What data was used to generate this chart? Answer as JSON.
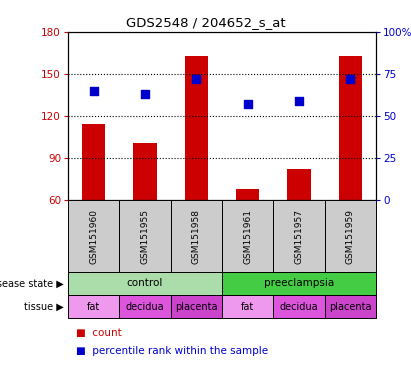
{
  "title": "GDS2548 / 204652_s_at",
  "samples": [
    "GSM151960",
    "GSM151955",
    "GSM151958",
    "GSM151961",
    "GSM151957",
    "GSM151959"
  ],
  "bar_values": [
    114,
    101,
    163,
    68,
    82,
    163
  ],
  "percentile_values": [
    65,
    63,
    72,
    57,
    59,
    72
  ],
  "bar_bottom": 60,
  "ylim_left": [
    60,
    180
  ],
  "ylim_right": [
    0,
    100
  ],
  "yticks_left": [
    60,
    90,
    120,
    150,
    180
  ],
  "yticks_right": [
    0,
    25,
    50,
    75,
    100
  ],
  "ytick_labels_right": [
    "0",
    "25",
    "50",
    "75",
    "100%"
  ],
  "bar_color": "#cc0000",
  "dot_color": "#0000cc",
  "disease_state": [
    {
      "label": "control",
      "span": [
        0,
        3
      ],
      "color": "#aaddaa"
    },
    {
      "label": "preeclampsia",
      "span": [
        3,
        6
      ],
      "color": "#44cc44"
    }
  ],
  "tissue": [
    {
      "label": "fat",
      "span": [
        0,
        1
      ],
      "color": "#ee99ee"
    },
    {
      "label": "decidua",
      "span": [
        1,
        2
      ],
      "color": "#dd55dd"
    },
    {
      "label": "placenta",
      "span": [
        2,
        3
      ],
      "color": "#cc44cc"
    },
    {
      "label": "fat",
      "span": [
        3,
        4
      ],
      "color": "#ee99ee"
    },
    {
      "label": "decidua",
      "span": [
        4,
        5
      ],
      "color": "#dd55dd"
    },
    {
      "label": "placenta",
      "span": [
        5,
        6
      ],
      "color": "#cc44cc"
    }
  ],
  "sample_bg_color": "#cccccc",
  "legend_count_color": "#cc0000",
  "legend_pct_color": "#0000cc",
  "fig_width": 4.11,
  "fig_height": 3.84,
  "dpi": 100
}
